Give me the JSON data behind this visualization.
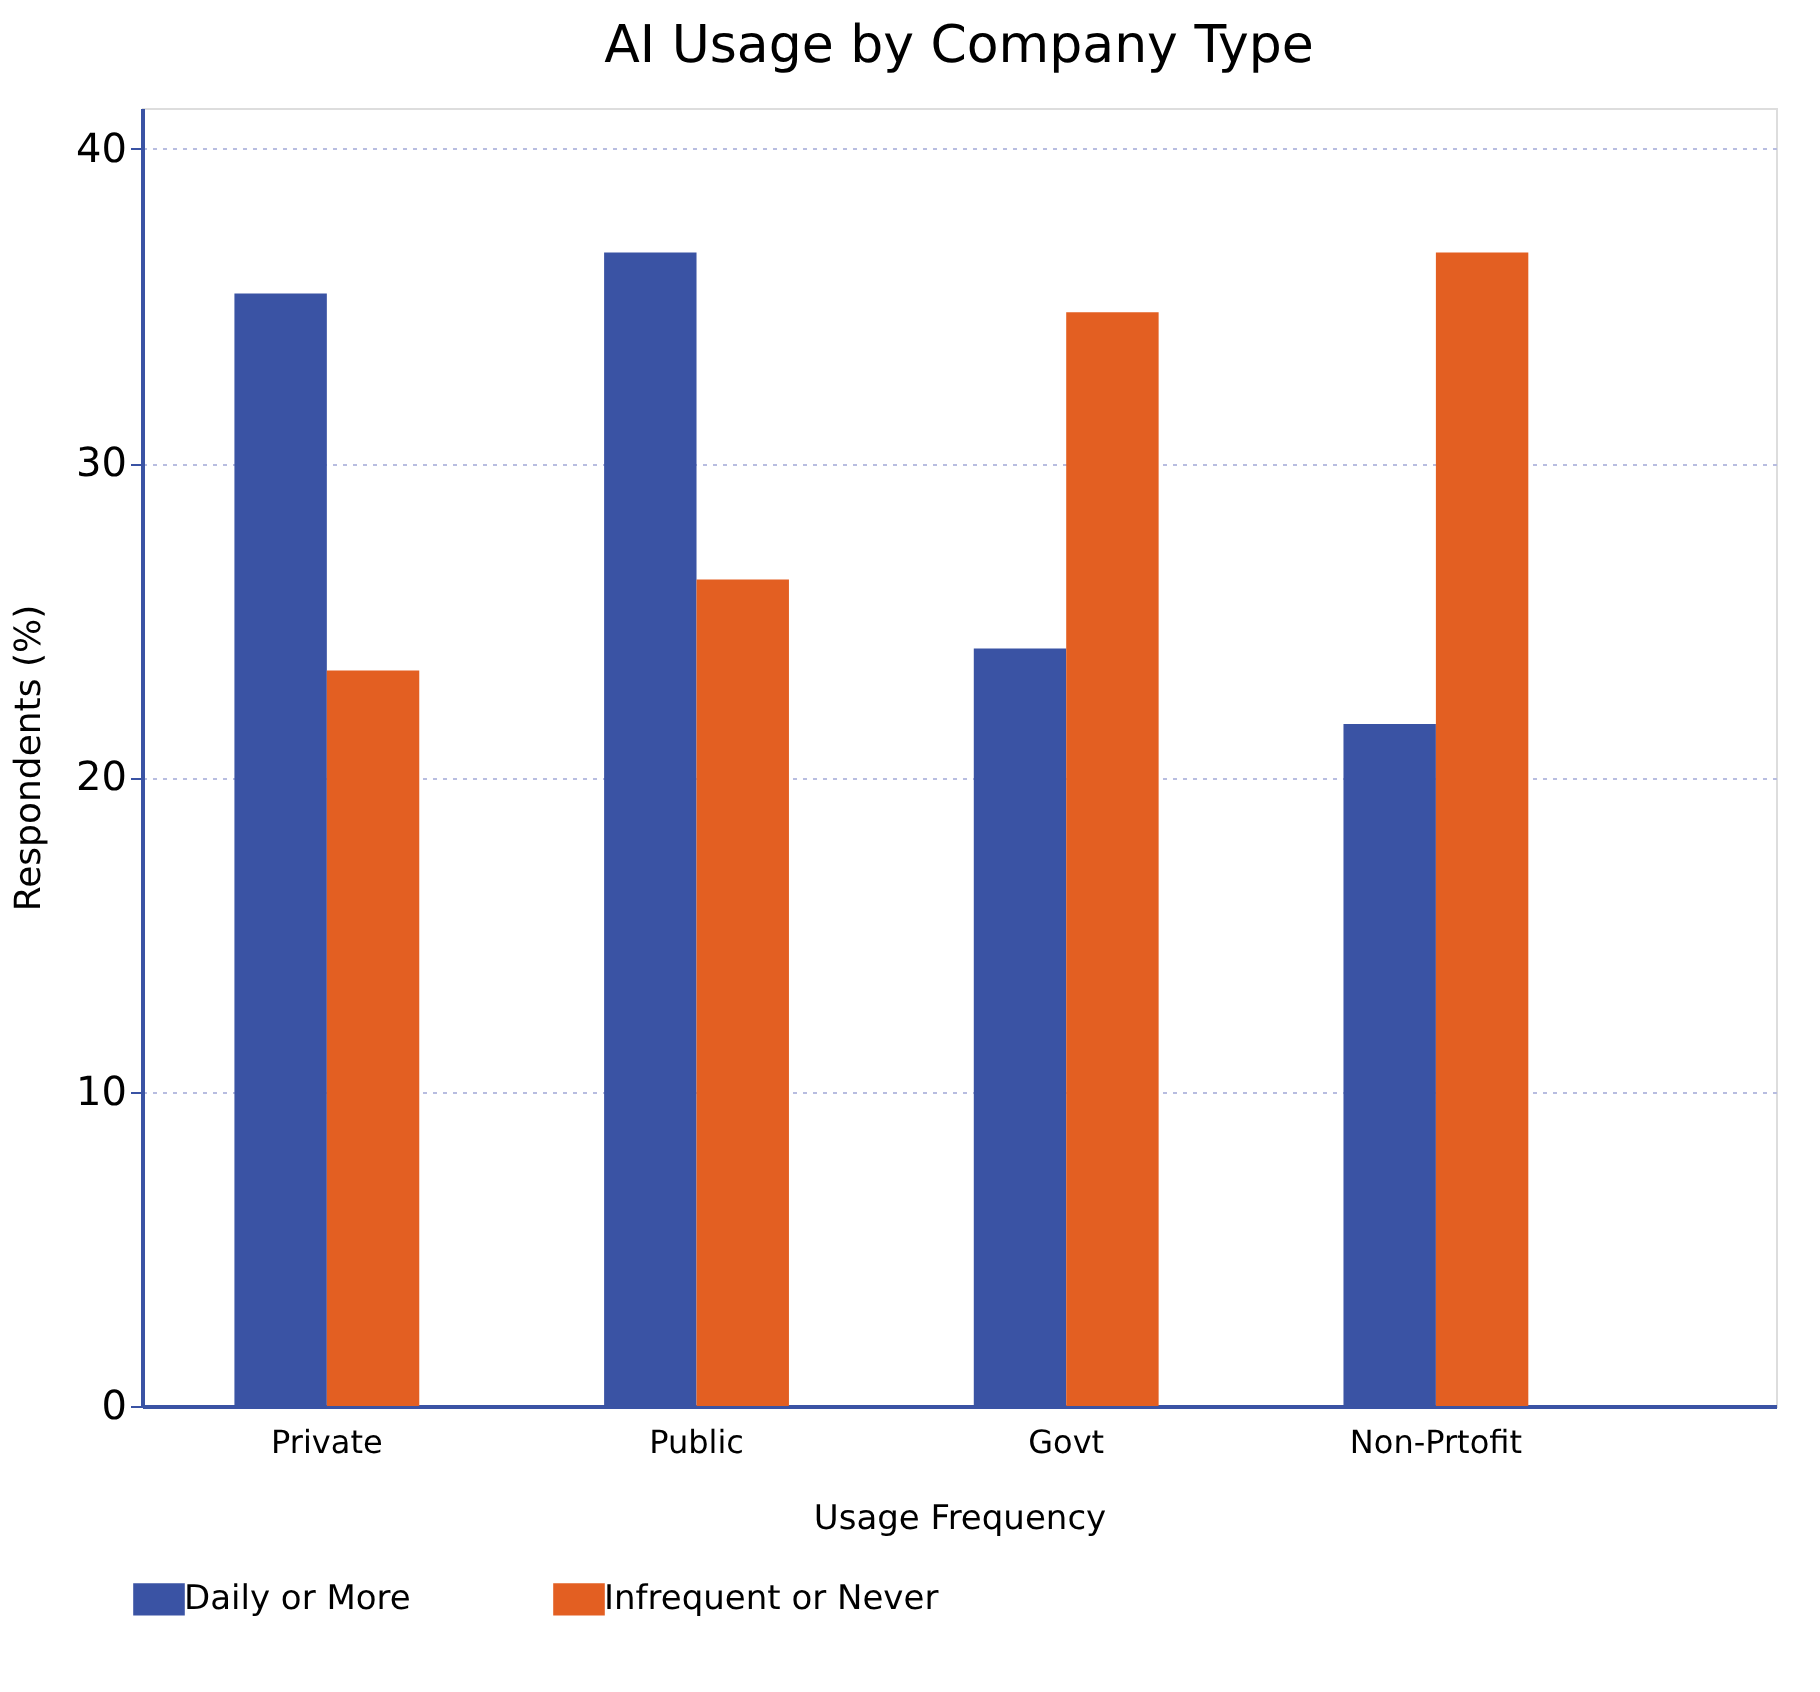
{
  "chart_data": {
    "type": "bar",
    "title": "AI Usage by Company Type",
    "xlabel": "Usage Frequency",
    "ylabel": "Respondents (%)",
    "categories": [
      "Private",
      "Public",
      "Govt",
      "Non-Prtofit"
    ],
    "series": [
      {
        "name": "Daily or More",
        "color": "#3a53a4",
        "values": [
          35.4,
          36.7,
          24.1,
          21.7
        ]
      },
      {
        "name": "Infrequent or Never",
        "color": "#e35f22",
        "values": [
          23.4,
          26.3,
          34.8,
          36.7
        ]
      }
    ],
    "ylim": [
      0,
      41.3
    ],
    "yticks": [
      0,
      10,
      20,
      30,
      40
    ],
    "grid": "y",
    "legend": "bottom"
  }
}
